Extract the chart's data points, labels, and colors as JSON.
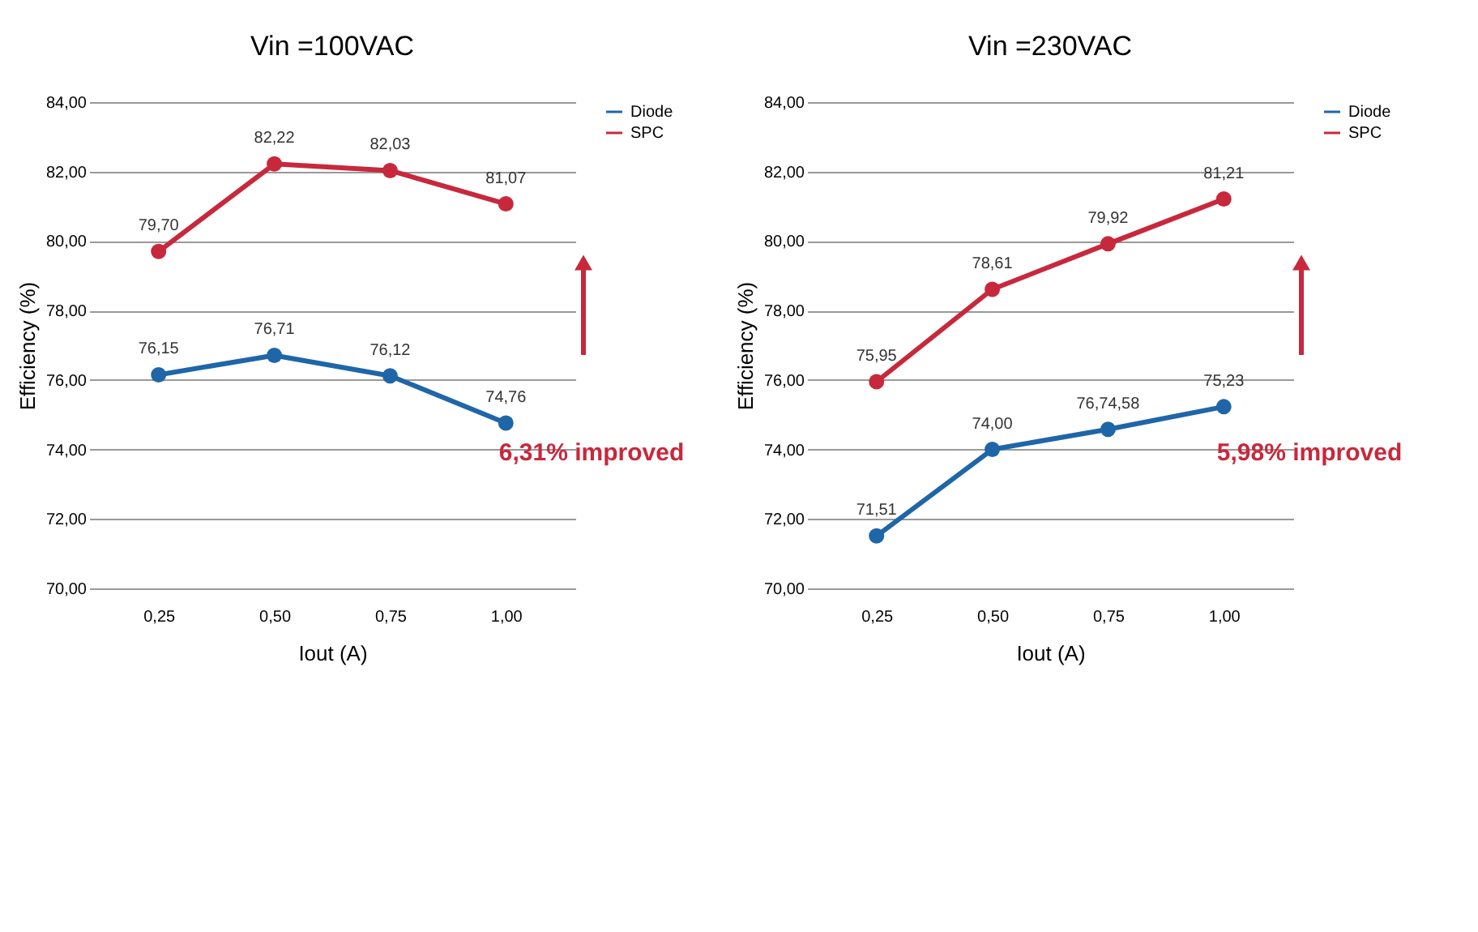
{
  "chart_data": [
    {
      "type": "line",
      "title": "Vin =100VAC",
      "xlabel": "Iout (A)",
      "ylabel": "Efficiency (%)",
      "categories": [
        "0,25",
        "0,50",
        "0,75",
        "1,00"
      ],
      "series": [
        {
          "name": "Diode",
          "color": "#1f66a8",
          "values": [
            76.15,
            76.71,
            76.12,
            74.76
          ],
          "value_labels": [
            "76,15",
            "76,71",
            "76,12",
            "74,76"
          ]
        },
        {
          "name": "SPC",
          "color": "#c8283c",
          "values": [
            79.7,
            82.22,
            82.03,
            81.07
          ],
          "value_labels": [
            "79,70",
            "82,22",
            "82,03",
            "81,07"
          ]
        }
      ],
      "ylim": [
        70,
        84
      ],
      "yticks": [
        {
          "value": 70,
          "label": "70,00"
        },
        {
          "value": 72,
          "label": "72,00"
        },
        {
          "value": 74,
          "label": "74,00"
        },
        {
          "value": 76,
          "label": "76,00"
        },
        {
          "value": 78,
          "label": "78,00"
        },
        {
          "value": 80,
          "label": "80,00"
        },
        {
          "value": 82,
          "label": "82,00"
        },
        {
          "value": 84,
          "label": "84,00"
        }
      ],
      "grid": "y",
      "legend": "right",
      "marker": "circle",
      "line_style": "solid",
      "annotations": [
        "6,31% improved"
      ]
    },
    {
      "type": "line",
      "title": "Vin =230VAC",
      "xlabel": "Iout (A)",
      "ylabel": "Efficiency (%)",
      "categories": [
        "0,25",
        "0,50",
        "0,75",
        "1,00"
      ],
      "series": [
        {
          "name": "Diode",
          "color": "#1f66a8",
          "values": [
            71.51,
            74.0,
            74.58,
            75.23
          ],
          "value_labels": [
            "71,51",
            "74,00",
            "76,74,58",
            "75,23"
          ]
        },
        {
          "name": "SPC",
          "color": "#c8283c",
          "values": [
            75.95,
            78.61,
            79.92,
            81.21
          ],
          "value_labels": [
            "75,95",
            "78,61",
            "79,92",
            "81,21"
          ]
        }
      ],
      "ylim": [
        70,
        84
      ],
      "yticks": [
        {
          "value": 70,
          "label": "70,00"
        },
        {
          "value": 72,
          "label": "72,00"
        },
        {
          "value": 74,
          "label": "74,00"
        },
        {
          "value": 76,
          "label": "76,00"
        },
        {
          "value": 78,
          "label": "78,00"
        },
        {
          "value": 80,
          "label": "80,00"
        },
        {
          "value": 82,
          "label": "82,00"
        },
        {
          "value": 84,
          "label": "84,00"
        }
      ],
      "grid": "y",
      "legend": "right",
      "marker": "circle",
      "line_style": "solid",
      "annotations": [
        "5,98% improved"
      ]
    }
  ]
}
